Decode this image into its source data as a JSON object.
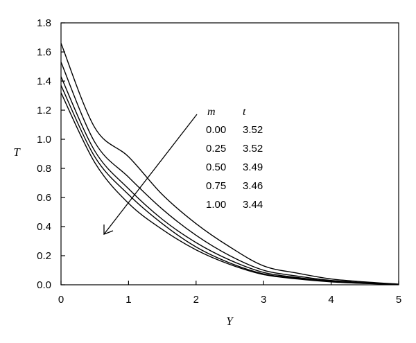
{
  "chart_data": {
    "type": "line",
    "xlabel": "Y",
    "ylabel": "T",
    "xlim": [
      0,
      5
    ],
    "ylim": [
      0,
      1.8
    ],
    "xticks": [
      "0",
      "1",
      "2",
      "3",
      "4",
      "5"
    ],
    "yticks": [
      "0.0",
      "0.2",
      "0.4",
      "0.6",
      "0.8",
      "1.0",
      "1.2",
      "1.4",
      "1.6",
      "1.8"
    ],
    "grid": false,
    "series": [
      {
        "x": [
          0,
          0.5,
          1,
          1.5,
          2,
          2.5,
          3,
          3.5,
          4,
          4.5,
          5
        ],
        "y": [
          1.66,
          1.08,
          0.88,
          0.62,
          0.42,
          0.26,
          0.13,
          0.08,
          0.04,
          0.02,
          0.005
        ]
      },
      {
        "x": [
          0,
          0.5,
          1,
          1.5,
          2,
          2.5,
          3,
          3.5,
          4,
          4.5,
          5
        ],
        "y": [
          1.53,
          0.98,
          0.74,
          0.52,
          0.34,
          0.2,
          0.1,
          0.06,
          0.03,
          0.015,
          0.004
        ]
      },
      {
        "x": [
          0,
          0.5,
          1,
          1.5,
          2,
          2.5,
          3,
          3.5,
          4,
          4.5,
          5
        ],
        "y": [
          1.43,
          0.92,
          0.66,
          0.45,
          0.29,
          0.17,
          0.085,
          0.05,
          0.025,
          0.012,
          0.003
        ]
      },
      {
        "x": [
          0,
          0.5,
          1,
          1.5,
          2,
          2.5,
          3,
          3.5,
          4,
          4.5,
          5
        ],
        "y": [
          1.37,
          0.88,
          0.62,
          0.42,
          0.26,
          0.15,
          0.075,
          0.045,
          0.022,
          0.01,
          0.003
        ]
      },
      {
        "x": [
          0,
          0.5,
          1,
          1.5,
          2,
          2.5,
          3,
          3.5,
          4,
          4.5,
          5
        ],
        "y": [
          1.32,
          0.84,
          0.56,
          0.38,
          0.24,
          0.14,
          0.07,
          0.04,
          0.02,
          0.009,
          0.002
        ]
      }
    ],
    "table": {
      "headers": [
        "m",
        "t"
      ],
      "rows": [
        [
          "0.00",
          "3.52"
        ],
        [
          "0.25",
          "3.52"
        ],
        [
          "0.50",
          "3.49"
        ],
        [
          "0.75",
          "3.46"
        ],
        [
          "1.00",
          "3.44"
        ]
      ]
    },
    "annotation": "arrow indicating increasing m"
  }
}
